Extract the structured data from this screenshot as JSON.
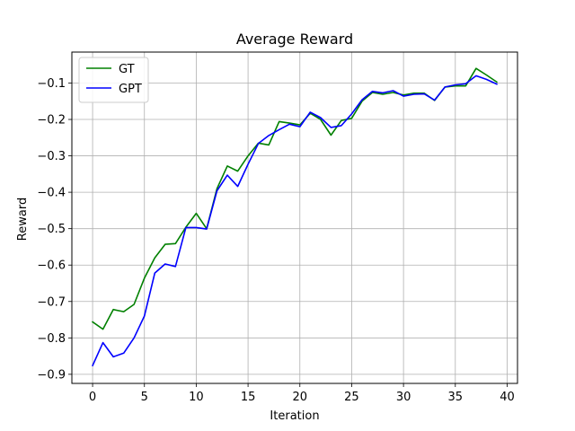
{
  "chart_data": {
    "type": "line",
    "title": "Average Reward",
    "xlabel": "Iteration",
    "ylabel": "Reward",
    "xlim": [
      -2,
      41
    ],
    "ylim": [
      -0.925,
      -0.015
    ],
    "x_ticks": [
      0,
      5,
      10,
      15,
      20,
      25,
      30,
      35,
      40
    ],
    "x_tick_labels": [
      "0",
      "5",
      "10",
      "15",
      "20",
      "25",
      "30",
      "35",
      "40"
    ],
    "y_ticks": [
      -0.9,
      -0.8,
      -0.7,
      -0.6,
      -0.5,
      -0.4,
      -0.3,
      -0.2,
      -0.1
    ],
    "y_tick_labels": [
      "−0.9",
      "−0.8",
      "−0.7",
      "−0.6",
      "−0.5",
      "−0.4",
      "−0.3",
      "−0.2",
      "−0.1"
    ],
    "grid": true,
    "legend_position": "top-left",
    "x": [
      0,
      1,
      2,
      3,
      4,
      5,
      6,
      7,
      8,
      9,
      10,
      11,
      12,
      13,
      14,
      15,
      16,
      17,
      18,
      19,
      20,
      21,
      22,
      23,
      24,
      25,
      26,
      27,
      28,
      29,
      30,
      31,
      32,
      33,
      34,
      35,
      36,
      37,
      38,
      39
    ],
    "series": [
      {
        "name": "GT",
        "color": "#008000",
        "values": [
          -0.756,
          -0.776,
          -0.722,
          -0.728,
          -0.708,
          -0.636,
          -0.58,
          -0.543,
          -0.541,
          -0.496,
          -0.458,
          -0.5,
          -0.39,
          -0.328,
          -0.342,
          -0.3,
          -0.265,
          -0.27,
          -0.206,
          -0.21,
          -0.215,
          -0.183,
          -0.2,
          -0.243,
          -0.203,
          -0.197,
          -0.15,
          -0.126,
          -0.131,
          -0.126,
          -0.133,
          -0.128,
          -0.128,
          -0.148,
          -0.111,
          -0.108,
          -0.108,
          -0.06,
          -0.078,
          -0.097
        ]
      },
      {
        "name": "GPT",
        "color": "#0000ff",
        "values": [
          -0.876,
          -0.813,
          -0.852,
          -0.842,
          -0.8,
          -0.74,
          -0.622,
          -0.597,
          -0.604,
          -0.497,
          -0.497,
          -0.501,
          -0.396,
          -0.353,
          -0.384,
          -0.323,
          -0.266,
          -0.244,
          -0.228,
          -0.213,
          -0.22,
          -0.18,
          -0.195,
          -0.222,
          -0.217,
          -0.185,
          -0.146,
          -0.123,
          -0.127,
          -0.121,
          -0.136,
          -0.131,
          -0.13,
          -0.147,
          -0.111,
          -0.105,
          -0.102,
          -0.08,
          -0.09,
          -0.103
        ]
      }
    ]
  }
}
